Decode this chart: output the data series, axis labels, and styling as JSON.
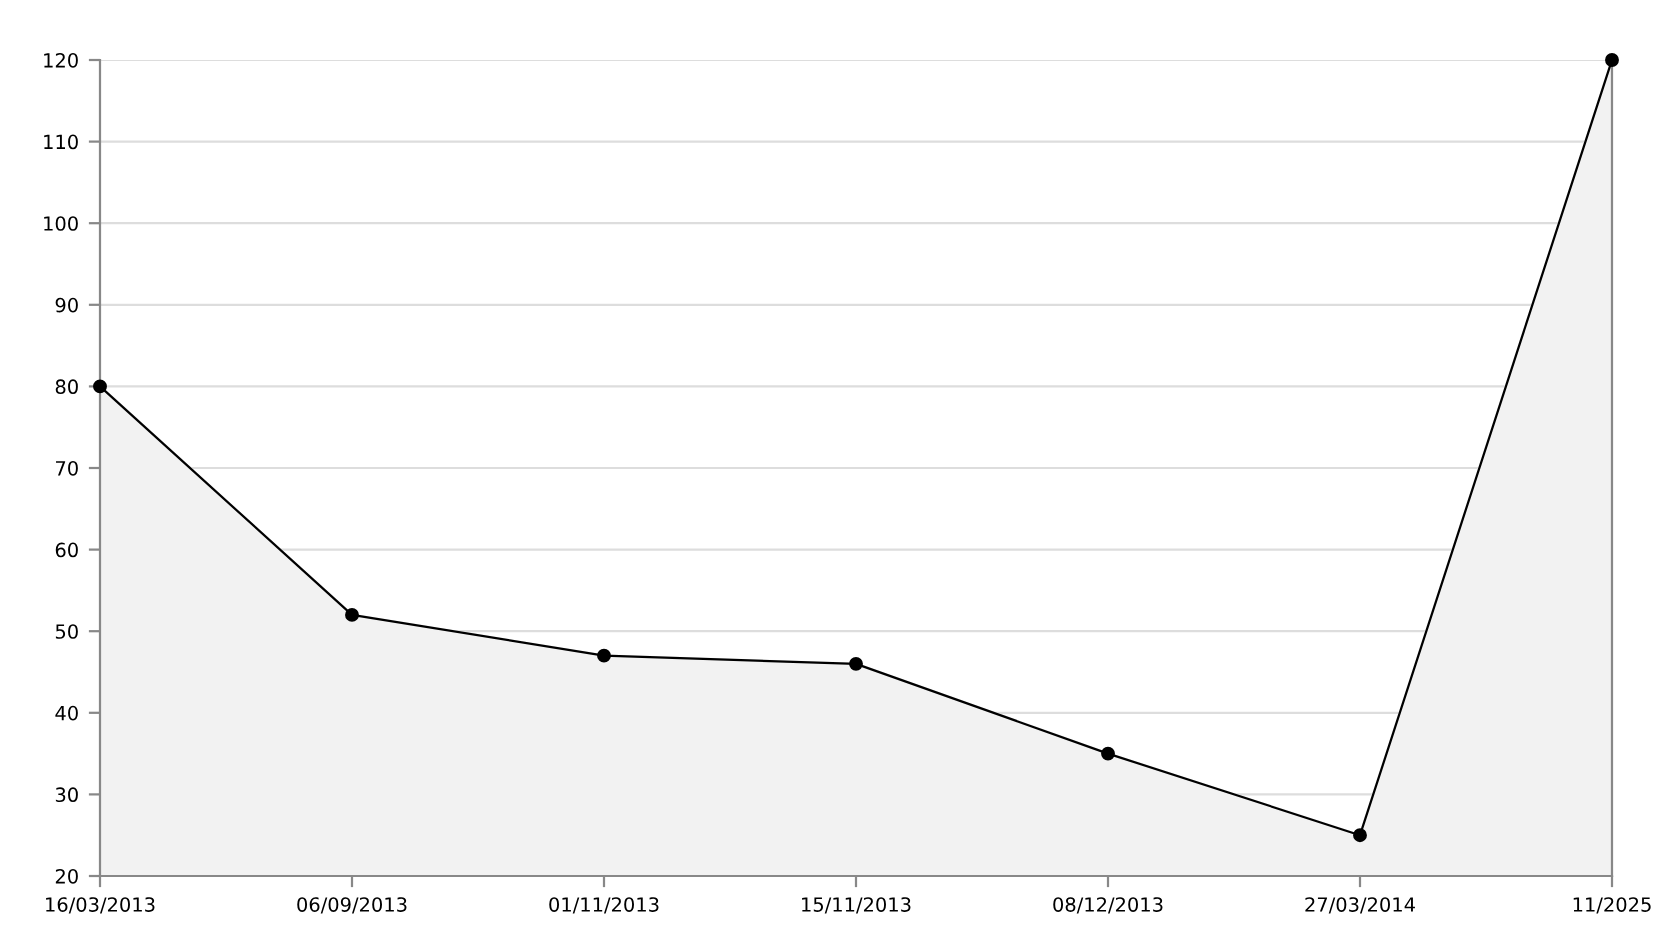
{
  "chart_data": {
    "type": "area",
    "categories": [
      "16/03/2013",
      "06/09/2013",
      "01/11/2013",
      "15/11/2013",
      "08/12/2013",
      "27/03/2014",
      "11/2025"
    ],
    "series": [
      {
        "color": "#000000",
        "values": [
          80,
          52,
          47,
          46,
          35,
          25,
          120
        ]
      }
    ],
    "ylim": [
      20,
      120
    ],
    "yticks": [
      20,
      30,
      40,
      50,
      60,
      70,
      80,
      90,
      100,
      110,
      120
    ],
    "grid": "y",
    "marker": "circle",
    "line_style": "solid"
  }
}
